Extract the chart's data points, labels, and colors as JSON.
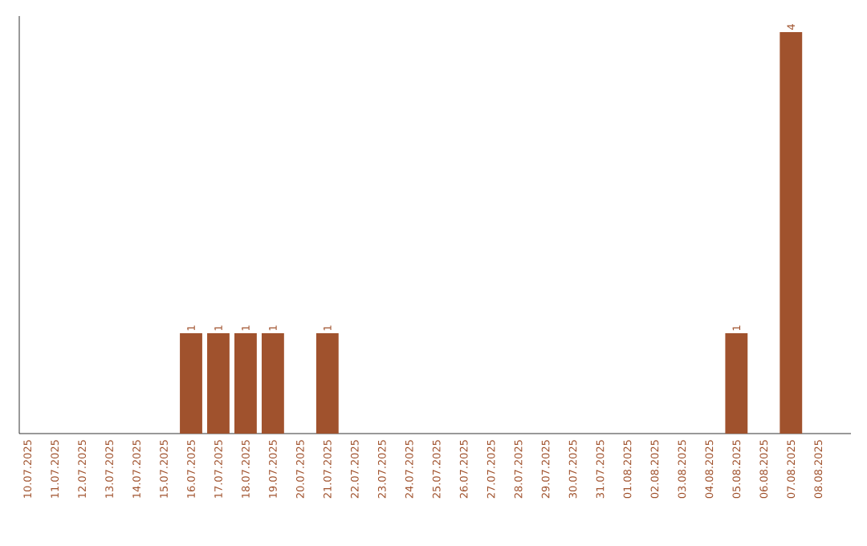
{
  "chart_data": {
    "type": "bar",
    "color": "#a0522d",
    "categories": [
      "10.07.2025",
      "11.07.2025",
      "12.07.2025",
      "13.07.2025",
      "14.07.2025",
      "15.07.2025",
      "16.07.2025",
      "17.07.2025",
      "18.07.2025",
      "19.07.2025",
      "20.07.2025",
      "21.07.2025",
      "22.07.2025",
      "23.07.2025",
      "24.07.2025",
      "25.07.2025",
      "26.07.2025",
      "27.07.2025",
      "28.07.2025",
      "29.07.2025",
      "30.07.2025",
      "31.07.2025",
      "01.08.2025",
      "02.08.2025",
      "03.08.2025",
      "04.08.2025",
      "05.08.2025",
      "06.08.2025",
      "07.08.2025",
      "08.08.2025"
    ],
    "values": [
      0,
      0,
      0,
      0,
      0,
      0,
      1,
      1,
      1,
      1,
      0,
      1,
      0,
      0,
      0,
      0,
      0,
      0,
      0,
      0,
      0,
      0,
      0,
      0,
      0,
      0,
      1,
      0,
      4,
      0
    ],
    "value_labels": [
      null,
      null,
      null,
      null,
      null,
      null,
      "1",
      "1",
      "1",
      "1",
      null,
      "1",
      null,
      null,
      null,
      null,
      null,
      null,
      null,
      null,
      null,
      null,
      null,
      null,
      null,
      null,
      "1",
      null,
      "4",
      null
    ],
    "grid": false
  }
}
